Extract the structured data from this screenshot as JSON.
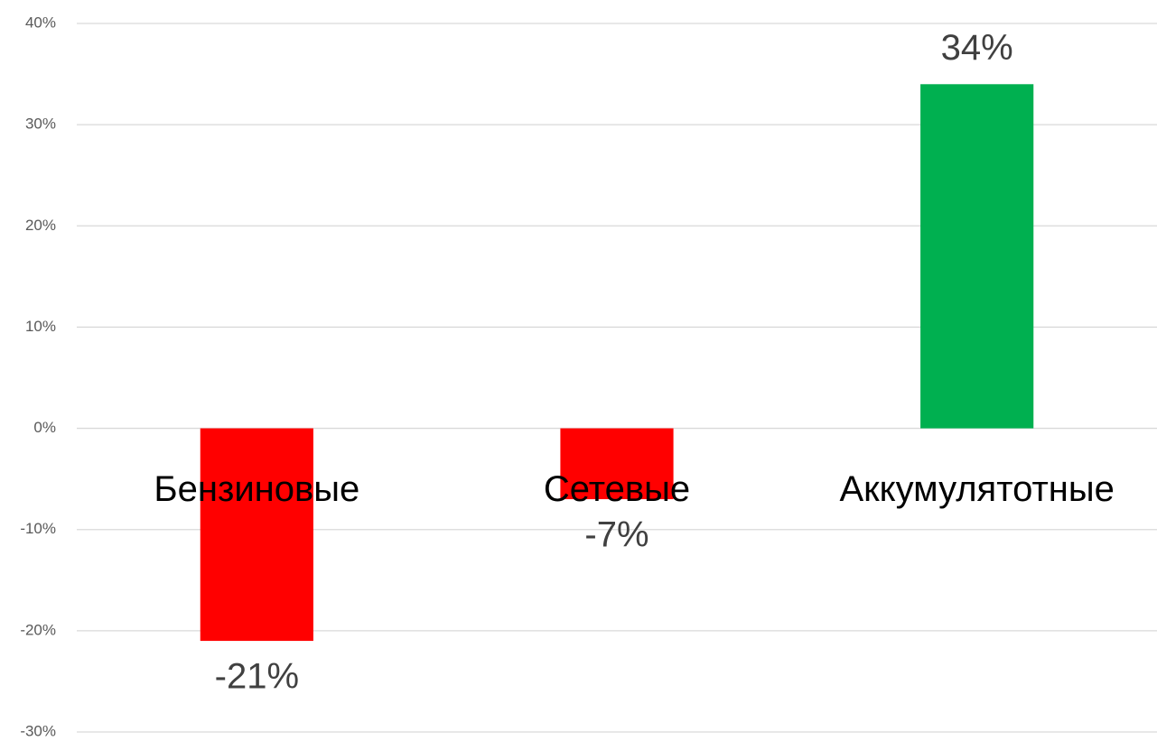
{
  "chart_data": {
    "type": "bar",
    "categories": [
      "Бензиновые",
      "Сетевые",
      "Аккумулятотные"
    ],
    "values": [
      -21,
      -7,
      34
    ],
    "value_labels": [
      "-21%",
      "-7%",
      "34%"
    ],
    "colors": [
      "#ff0000",
      "#ff0000",
      "#00b050"
    ],
    "ylim": [
      -30,
      40
    ],
    "yticks": [
      {
        "value": -30,
        "label": "-30%"
      },
      {
        "value": -20,
        "label": "-20%"
      },
      {
        "value": -10,
        "label": "-10%"
      },
      {
        "value": 0,
        "label": "0%"
      },
      {
        "value": 10,
        "label": "10%"
      },
      {
        "value": 20,
        "label": "20%"
      },
      {
        "value": 30,
        "label": "30%"
      },
      {
        "value": 40,
        "label": "40%"
      }
    ],
    "grid": true
  }
}
